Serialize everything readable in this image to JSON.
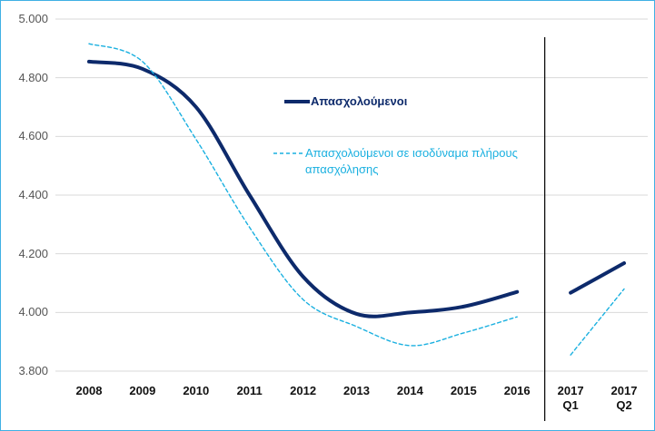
{
  "chart_data": {
    "type": "line",
    "categories": [
      "2008",
      "2009",
      "2010",
      "2011",
      "2012",
      "2013",
      "2014",
      "2015",
      "2016",
      "2017\nQ1",
      "2017\nQ2"
    ],
    "series": [
      {
        "name": "Απασχολούμενοι",
        "color": "#0d2a6b",
        "values": [
          4855,
          4830,
          4700,
          4400,
          4122,
          3995,
          4000,
          4020,
          4070,
          4067,
          4168
        ]
      },
      {
        "name": "Απασχολούμενοι σε ισοδύναμα πλήρους απασχόλησης",
        "color": "#1ab0e0",
        "dashed": true,
        "values": [
          4916,
          4855,
          4590,
          4290,
          4044,
          3952,
          3887,
          3930,
          3985,
          3855,
          4080
        ]
      }
    ],
    "ylim": [
      3800,
      5000
    ],
    "yticks": [
      {
        "value": 3800,
        "label": "3.800"
      },
      {
        "value": 4000,
        "label": "4.000"
      },
      {
        "value": 4200,
        "label": "4.200"
      },
      {
        "value": 4400,
        "label": "4.400"
      },
      {
        "value": 4600,
        "label": "4.600"
      },
      {
        "value": 4800,
        "label": "4.800"
      },
      {
        "value": 5000,
        "label": "5.000"
      }
    ],
    "grid": true,
    "break_after": 8
  }
}
